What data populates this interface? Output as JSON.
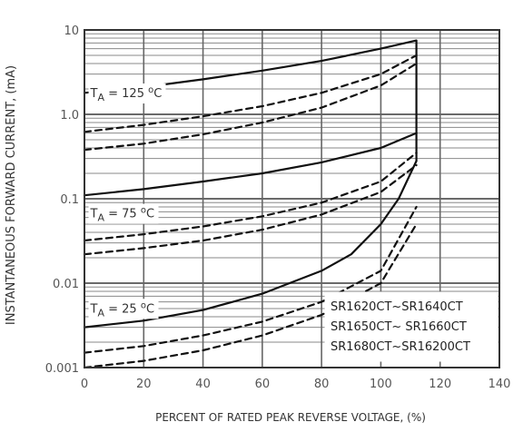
{
  "chart_data": {
    "type": "line",
    "xlabel": "PERCENT OF RATED PEAK REVERSE VOLTAGE, (%)",
    "ylabel": "INSTANTANEOUS FORWARD CURRENT, (mA)",
    "xlim": [
      0,
      140
    ],
    "ylim": [
      0.001,
      10
    ],
    "yscale": "log",
    "grid": true,
    "x_ticks": [
      0,
      20,
      40,
      60,
      80,
      100,
      120,
      140
    ],
    "x_tick_labels": [
      "0",
      "20",
      "40",
      "60",
      "80",
      "100",
      "120",
      "140"
    ],
    "y_ticks": [
      0.001,
      0.01,
      0.1,
      1.0,
      10
    ],
    "y_tick_labels": [
      "0.001",
      "0.01",
      "0.1",
      "1.0",
      "10"
    ],
    "legend_position": "bottom-right",
    "legend_entries": [
      "SR1620CT~SR1640CT",
      "SR1650CT~ SR1660CT",
      "SR1680CT~SR16200CT"
    ],
    "annotations": [
      {
        "temp": "125",
        "x": 2,
        "y": 1.6
      },
      {
        "temp": "75",
        "x": 2,
        "y": 0.06
      },
      {
        "temp": "25",
        "x": 2,
        "y": 0.0045
      }
    ],
    "series": [
      {
        "group": "125",
        "style": "solid",
        "x": [
          0,
          20,
          40,
          60,
          80,
          100,
          112
        ],
        "y": [
          1.8,
          2.1,
          2.6,
          3.3,
          4.3,
          6.0,
          7.5
        ]
      },
      {
        "group": "125",
        "style": "dashed",
        "x": [
          0,
          20,
          40,
          60,
          80,
          100,
          112
        ],
        "y": [
          0.62,
          0.75,
          0.95,
          1.25,
          1.8,
          3.0,
          5.0
        ]
      },
      {
        "group": "125",
        "style": "dashed",
        "x": [
          0,
          20,
          40,
          60,
          80,
          100,
          112
        ],
        "y": [
          0.38,
          0.45,
          0.58,
          0.8,
          1.2,
          2.2,
          4.0
        ]
      },
      {
        "group": "75",
        "style": "solid",
        "x": [
          0,
          20,
          40,
          60,
          80,
          100,
          112
        ],
        "y": [
          0.11,
          0.13,
          0.16,
          0.2,
          0.27,
          0.4,
          0.6
        ]
      },
      {
        "group": "75",
        "style": "dashed",
        "x": [
          0,
          20,
          40,
          60,
          80,
          100,
          112
        ],
        "y": [
          0.032,
          0.038,
          0.047,
          0.062,
          0.09,
          0.16,
          0.35
        ]
      },
      {
        "group": "75",
        "style": "dashed",
        "x": [
          0,
          20,
          40,
          60,
          80,
          100,
          112
        ],
        "y": [
          0.022,
          0.026,
          0.032,
          0.043,
          0.065,
          0.12,
          0.25
        ]
      },
      {
        "group": "25",
        "style": "solid",
        "x": [
          0,
          20,
          40,
          60,
          80,
          90,
          100,
          106,
          112
        ],
        "y": [
          0.003,
          0.0036,
          0.0048,
          0.0075,
          0.014,
          0.022,
          0.05,
          0.1,
          0.28
        ]
      },
      {
        "group": "25",
        "style": "dashed",
        "x": [
          0,
          20,
          40,
          60,
          80,
          100,
          112
        ],
        "y": [
          0.0015,
          0.0018,
          0.0024,
          0.0035,
          0.006,
          0.014,
          0.08
        ]
      },
      {
        "group": "25",
        "style": "dashed",
        "x": [
          0,
          20,
          40,
          60,
          80,
          100,
          112
        ],
        "y": [
          0.001,
          0.0012,
          0.0016,
          0.0024,
          0.0042,
          0.01,
          0.05
        ]
      }
    ],
    "vertical_lines": [
      {
        "x": 112,
        "y_from": 7.5,
        "y_to": 0.6
      },
      {
        "x": 112,
        "y_from": 0.6,
        "y_to": 0.28
      }
    ]
  }
}
